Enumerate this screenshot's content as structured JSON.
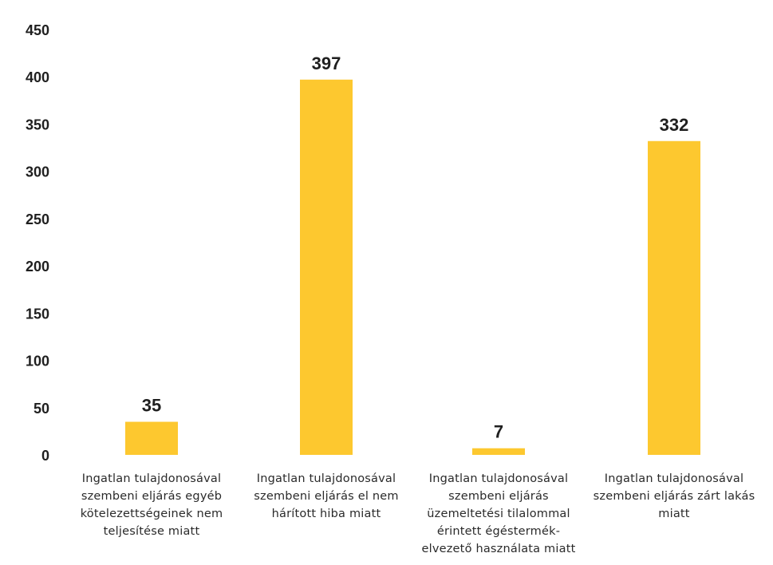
{
  "chart_data": {
    "type": "bar",
    "title": "",
    "xlabel": "",
    "ylabel": "",
    "ylim": [
      0,
      450
    ],
    "yticks": [
      0,
      50,
      100,
      150,
      200,
      250,
      300,
      350,
      400,
      450
    ],
    "grid": false,
    "legend": "none",
    "bar_color": "#FDC82F",
    "categories": [
      "Ingatlan tulajdonosával szembeni eljárás egyéb kötelezettségeinek nem teljesítése miatt",
      "Ingatlan tulajdonosával szembeni eljárás el nem hárított hiba miatt",
      "Ingatlan tulajdonosával szembeni eljárás üzemeltetési tilalommal érintett égéstermék-elvezető használata miatt",
      "Ingatlan tulajdonosával szembeni eljárás zárt lakás miatt"
    ],
    "category_lines": [
      [
        "Ingatlan tulajdonosával",
        "szembeni eljárás egyéb",
        "kötelezettségeinek nem",
        "teljesítése miatt"
      ],
      [
        "Ingatlan tulajdonosával",
        "szembeni eljárás el nem",
        "hárított hiba miatt"
      ],
      [
        "Ingatlan tulajdonosával",
        "szembeni eljárás",
        "üzemeltetési tilalommal",
        "érintett égéstermék-",
        "elvezető használata miatt"
      ],
      [
        "Ingatlan tulajdonosával",
        "szembeni eljárás zárt lakás",
        "miatt"
      ]
    ],
    "values": [
      35,
      397,
      7,
      332
    ],
    "data_labels": [
      "35",
      "397",
      "7",
      "332"
    ]
  }
}
